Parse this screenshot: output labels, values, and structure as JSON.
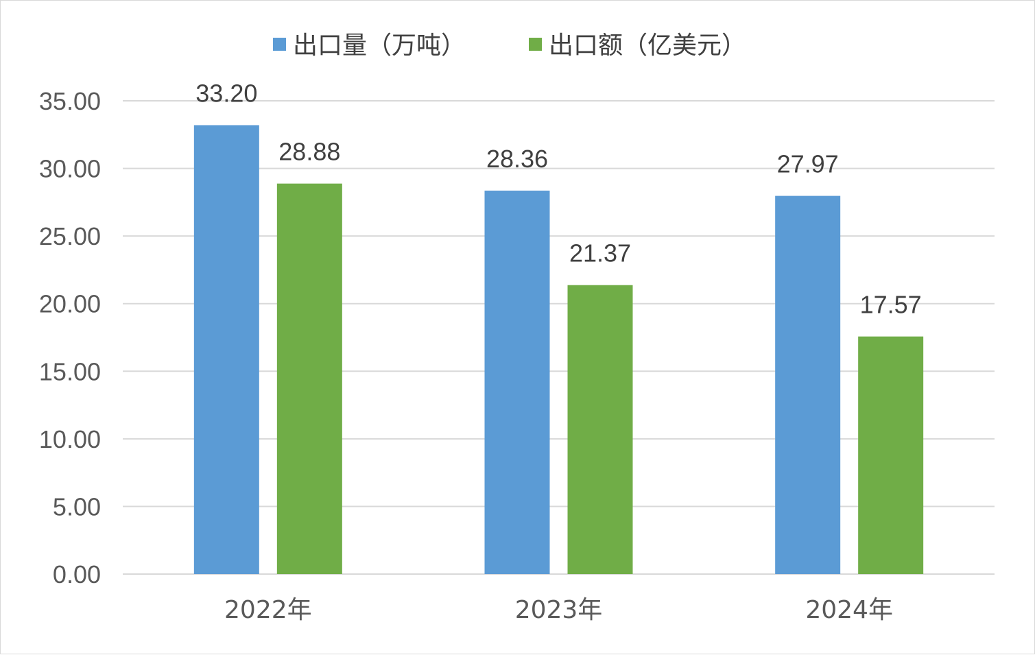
{
  "chart_data": {
    "type": "bar",
    "categories": [
      "2022年",
      "2023年",
      "2024年"
    ],
    "series": [
      {
        "name": "出口量（万吨）",
        "values": [
          33.2,
          28.36,
          27.97
        ],
        "color": "#5b9bd5",
        "labels": [
          "33.20",
          "28.36",
          "27.97"
        ]
      },
      {
        "name": "出口额（亿美元）",
        "values": [
          28.88,
          21.37,
          17.57
        ],
        "color": "#70ad47",
        "labels": [
          "28.88",
          "21.37",
          "17.57"
        ]
      }
    ],
    "ylim": [
      0,
      35
    ],
    "yticks": [
      0,
      5,
      10,
      15,
      20,
      25,
      30,
      35
    ],
    "ytick_labels": [
      "0.00",
      "5.00",
      "10.00",
      "15.00",
      "20.00",
      "25.00",
      "30.00",
      "35.00"
    ],
    "grid": true,
    "gridline_color": "#d9d9d9",
    "legend_position": "top-center",
    "title": "",
    "xlabel": "",
    "ylabel": ""
  }
}
